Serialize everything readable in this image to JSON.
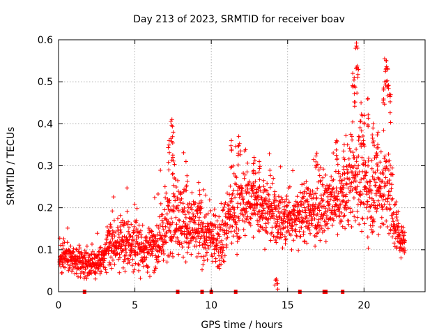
{
  "chart_data": {
    "type": "scatter",
    "title": "Day 213 of 2023, SRMTID for receiver boav",
    "xlabel": "GPS time / hours",
    "ylabel": "SRMTID / TECUs",
    "xlim": [
      0,
      24
    ],
    "ylim": [
      0,
      0.6
    ],
    "x_ticks": [
      0,
      5,
      10,
      15,
      20
    ],
    "x_tick_labels": [
      "0",
      "5",
      "10",
      "15",
      "20"
    ],
    "y_ticks": [
      0,
      0.1,
      0.2,
      0.3,
      0.4,
      0.5,
      0.6
    ],
    "y_tick_labels": [
      "0",
      "0.1",
      "0.2",
      "0.3",
      "0.4",
      "0.5",
      "0.6"
    ],
    "grid": true,
    "marker": "+",
    "color": "#ff0000",
    "trend": [
      [
        0.0,
        0.085,
        0.025
      ],
      [
        1.0,
        0.075,
        0.022
      ],
      [
        2.0,
        0.065,
        0.02
      ],
      [
        2.9,
        0.075,
        0.025
      ],
      [
        3.5,
        0.12,
        0.045
      ],
      [
        4.0,
        0.11,
        0.04
      ],
      [
        5.0,
        0.11,
        0.04
      ],
      [
        6.0,
        0.1,
        0.035
      ],
      [
        7.0,
        0.14,
        0.055
      ],
      [
        7.5,
        0.2,
        0.07
      ],
      [
        8.5,
        0.15,
        0.05
      ],
      [
        9.5,
        0.14,
        0.05
      ],
      [
        10.5,
        0.12,
        0.04
      ],
      [
        11.5,
        0.2,
        0.06
      ],
      [
        12.5,
        0.22,
        0.05
      ],
      [
        13.5,
        0.2,
        0.05
      ],
      [
        14.5,
        0.17,
        0.045
      ],
      [
        15.5,
        0.18,
        0.045
      ],
      [
        16.5,
        0.19,
        0.045
      ],
      [
        17.5,
        0.2,
        0.05
      ],
      [
        18.5,
        0.22,
        0.05
      ],
      [
        19.5,
        0.28,
        0.08
      ],
      [
        20.5,
        0.24,
        0.07
      ],
      [
        21.5,
        0.25,
        0.08
      ],
      [
        22.3,
        0.13,
        0.03
      ],
      [
        22.7,
        0.11,
        0.02
      ]
    ],
    "spikes": [
      [
        7.4,
        0.41
      ],
      [
        7.5,
        0.38
      ],
      [
        7.2,
        0.36
      ],
      [
        8.4,
        0.31
      ],
      [
        9.2,
        0.26
      ],
      [
        11.3,
        0.36
      ],
      [
        11.8,
        0.37
      ],
      [
        12.8,
        0.32
      ],
      [
        13.2,
        0.31
      ],
      [
        16.9,
        0.33
      ],
      [
        18.2,
        0.36
      ],
      [
        18.7,
        0.35
      ],
      [
        19.3,
        0.52
      ],
      [
        19.5,
        0.6
      ],
      [
        19.6,
        0.58
      ],
      [
        19.4,
        0.49
      ],
      [
        19.8,
        0.45
      ],
      [
        20.0,
        0.42
      ],
      [
        20.3,
        0.46
      ],
      [
        21.4,
        0.555
      ],
      [
        21.5,
        0.55
      ],
      [
        21.6,
        0.53
      ],
      [
        21.3,
        0.5
      ],
      [
        21.7,
        0.47
      ],
      [
        20.6,
        0.4
      ],
      [
        20.9,
        0.38
      ],
      [
        14.2,
        0.028
      ],
      [
        14.3,
        0.03
      ]
    ],
    "gap_markers_x": [
      1.7,
      7.8,
      9.4,
      10.0,
      11.6,
      15.8,
      17.4,
      17.5,
      18.6
    ],
    "point_count": 2200
  }
}
